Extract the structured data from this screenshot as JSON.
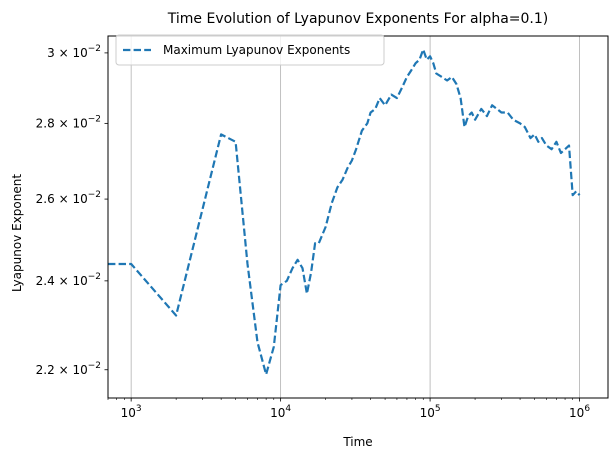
{
  "chart_data": {
    "type": "line",
    "title": "Time Evolution of Lyapunov Exponents For alpha=0.1)",
    "xlabel": "Time",
    "ylabel": "Lyapunov Exponent",
    "xscale": "log",
    "yscale": "log",
    "xlim": [
      700,
      1550000
    ],
    "ylim": [
      0.0214,
      0.0305
    ],
    "x_ticks": [
      {
        "value": 1000,
        "base": "10",
        "exp": "3"
      },
      {
        "value": 10000,
        "base": "10",
        "exp": "4"
      },
      {
        "value": 100000,
        "base": "10",
        "exp": "5"
      },
      {
        "value": 1000000,
        "base": "10",
        "exp": "6"
      }
    ],
    "y_ticks": [
      {
        "value": 0.022,
        "mant": "2.2 × 10",
        "exp": "−2"
      },
      {
        "value": 0.024,
        "mant": "2.4 × 10",
        "exp": "−2"
      },
      {
        "value": 0.026,
        "mant": "2.6 × 10",
        "exp": "−2"
      },
      {
        "value": 0.028,
        "mant": "2.8 × 10",
        "exp": "−2"
      },
      {
        "value": 0.03,
        "mant": "3 × 10",
        "exp": "−2"
      }
    ],
    "grid": "vertical major gridlines",
    "legend_position": "top-left",
    "color": "#1f77b4",
    "series": [
      {
        "name": "Maximum Lyapunov Exponents",
        "style": "dashed",
        "x": [
          700,
          1000,
          2000,
          4000,
          5000,
          6000,
          7000,
          8000,
          9000,
          10000,
          11000,
          12000,
          13000,
          14000,
          15000,
          16000,
          17000,
          18000,
          20000,
          22000,
          24000,
          26000,
          28000,
          30000,
          32000,
          35000,
          38000,
          40000,
          43000,
          46000,
          50000,
          55000,
          60000,
          65000,
          70000,
          75000,
          80000,
          85000,
          90000,
          95000,
          100000,
          105000,
          110000,
          120000,
          130000,
          140000,
          150000,
          160000,
          170000,
          180000,
          190000,
          200000,
          220000,
          240000,
          260000,
          280000,
          300000,
          330000,
          360000,
          400000,
          430000,
          470000,
          500000,
          530000,
          560000,
          600000,
          650000,
          700000,
          750000,
          800000,
          850000,
          900000,
          950000,
          1000000
        ],
        "y": [
          0.0244,
          0.0244,
          0.0232,
          0.0277,
          0.0275,
          0.0244,
          0.0226,
          0.0219,
          0.0225,
          0.0239,
          0.024,
          0.0243,
          0.0245,
          0.0243,
          0.0237,
          0.0242,
          0.0249,
          0.0249,
          0.0253,
          0.0259,
          0.0263,
          0.0265,
          0.0268,
          0.027,
          0.0273,
          0.0278,
          0.028,
          0.0283,
          0.0284,
          0.0287,
          0.0285,
          0.0288,
          0.0287,
          0.029,
          0.0293,
          0.0295,
          0.0297,
          0.0298,
          0.0301,
          0.0298,
          0.0299,
          0.0297,
          0.0294,
          0.0293,
          0.0292,
          0.0293,
          0.0291,
          0.0287,
          0.0279,
          0.0282,
          0.0283,
          0.0281,
          0.0284,
          0.0282,
          0.0285,
          0.0284,
          0.0283,
          0.0283,
          0.0281,
          0.028,
          0.0279,
          0.0276,
          0.0277,
          0.0275,
          0.0276,
          0.0274,
          0.0273,
          0.0275,
          0.0272,
          0.0273,
          0.0274,
          0.0261,
          0.0262,
          0.0261
        ]
      }
    ]
  }
}
